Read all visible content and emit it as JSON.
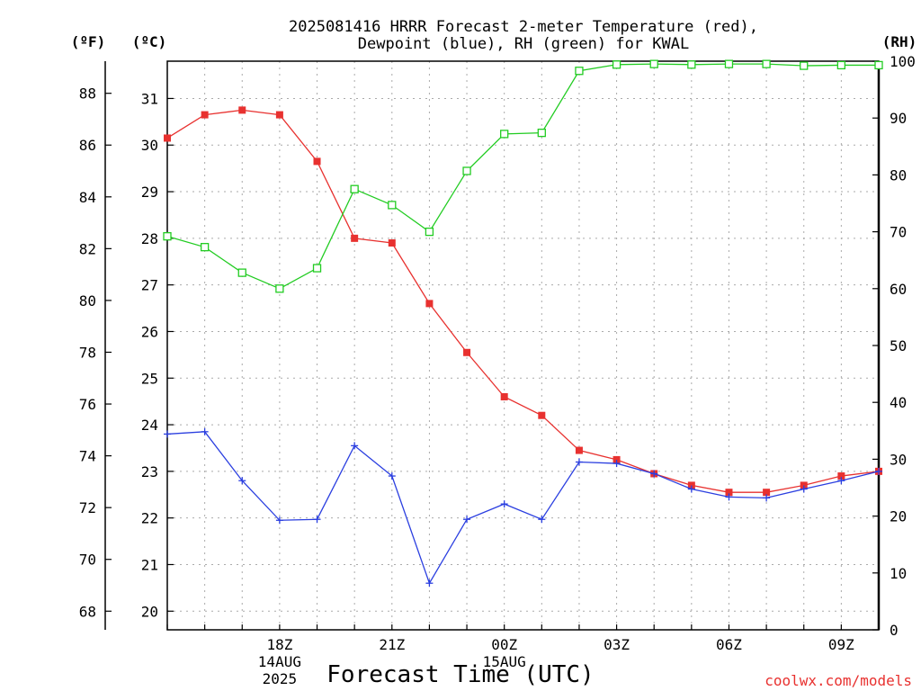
{
  "chart_data": {
    "type": "line",
    "title_line1": "2025081416 HRRR Forecast 2-meter Temperature (red),",
    "title_line2": "Dewpoint (blue), RH (green) for KWAL",
    "xlabel": "Forecast Time (UTC)",
    "credit": "coolwx.com/models",
    "units": {
      "fahrenheit": "(ºF)",
      "celsius": "(ºC)",
      "rh": "(RH)"
    },
    "x": [
      "15Z",
      "16Z",
      "17Z",
      "18Z",
      "19Z",
      "20Z",
      "21Z",
      "22Z",
      "23Z",
      "00Z",
      "01Z",
      "02Z",
      "03Z",
      "04Z",
      "05Z",
      "06Z",
      "07Z",
      "08Z",
      "09Z",
      "10Z"
    ],
    "x_ticks": [
      {
        "index": 3,
        "label": "18Z",
        "sub1": "14AUG",
        "sub2": "2025"
      },
      {
        "index": 6,
        "label": "21Z",
        "sub1": "",
        "sub2": ""
      },
      {
        "index": 9,
        "label": "00Z",
        "sub1": "15AUG",
        "sub2": ""
      },
      {
        "index": 12,
        "label": "03Z",
        "sub1": "",
        "sub2": ""
      },
      {
        "index": 15,
        "label": "06Z",
        "sub1": "",
        "sub2": ""
      },
      {
        "index": 18,
        "label": "09Z",
        "sub1": "",
        "sub2": ""
      }
    ],
    "y_celsius_ticks": [
      20,
      21,
      22,
      23,
      24,
      25,
      26,
      27,
      28,
      29,
      30,
      31
    ],
    "y_fahrenheit_ticks": [
      68,
      70,
      72,
      74,
      76,
      78,
      80,
      82,
      84,
      86,
      88
    ],
    "y_rh_ticks": [
      0,
      10,
      20,
      30,
      40,
      50,
      60,
      70,
      80,
      90,
      100
    ],
    "ylim_celsius": [
      19.6,
      31.8
    ],
    "ylim_rh": [
      0,
      100
    ],
    "grid": true,
    "series": [
      {
        "name": "Temperature",
        "color": "#e8312f",
        "marker": "filled-square",
        "axis": "celsius",
        "values": [
          30.15,
          30.65,
          30.75,
          30.65,
          29.65,
          28.0,
          27.9,
          26.6,
          25.55,
          24.6,
          24.2,
          23.45,
          23.25,
          22.95,
          22.7,
          22.55,
          22.55,
          22.7,
          22.9,
          23.0
        ]
      },
      {
        "name": "Dewpoint",
        "color": "#2b3fe0",
        "marker": "plus",
        "axis": "celsius",
        "values": [
          23.8,
          23.85,
          22.8,
          21.95,
          21.97,
          23.55,
          22.9,
          20.6,
          21.97,
          22.3,
          21.97,
          23.2,
          23.17,
          22.95,
          22.62,
          22.45,
          22.43,
          22.62,
          22.8,
          23.0
        ]
      },
      {
        "name": "RH",
        "color": "#22cc22",
        "marker": "open-square",
        "axis": "rh",
        "values": [
          69.2,
          67.3,
          62.8,
          60.0,
          63.6,
          77.5,
          74.7,
          70.0,
          80.7,
          87.2,
          87.4,
          98.3,
          99.4,
          99.5,
          99.4,
          99.5,
          99.5,
          99.2,
          99.3,
          99.3
        ]
      }
    ]
  }
}
